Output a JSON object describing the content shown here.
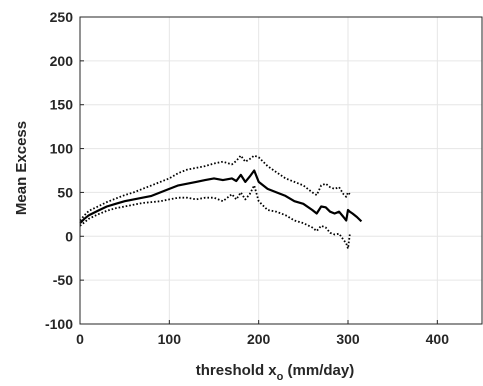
{
  "chart_data": {
    "type": "line",
    "title": "",
    "xlabel_main": "threshold x",
    "xlabel_sub": "o",
    "xlabel_unit": " (mm/day)",
    "ylabel": "Mean Excess",
    "xlim": [
      0,
      450
    ],
    "ylim": [
      -100,
      250
    ],
    "xticks": [
      0,
      100,
      200,
      300,
      400
    ],
    "yticks": [
      -100,
      -50,
      0,
      50,
      100,
      150,
      200,
      250
    ],
    "xtick_labels": [
      "0",
      "100",
      "200",
      "300",
      "400"
    ],
    "ytick_labels": [
      "-100",
      "-50",
      "0",
      "50",
      "100",
      "150",
      "200",
      "250"
    ],
    "grid": true,
    "colors": {
      "line": "#000000",
      "grid": "#e6e6e6",
      "axes": "#262626"
    },
    "series": [
      {
        "style": "solid",
        "x": [
          0,
          5,
          10,
          20,
          30,
          40,
          50,
          60,
          70,
          80,
          90,
          100,
          110,
          120,
          130,
          140,
          150,
          160,
          170,
          175,
          180,
          185,
          190,
          195,
          200,
          210,
          220,
          230,
          240,
          250,
          260,
          265,
          270,
          275,
          280,
          285,
          290,
          295,
          298,
          300,
          302,
          305,
          310,
          315
        ],
        "y": [
          15,
          20,
          24,
          29,
          34,
          37,
          40,
          42,
          44,
          46,
          50,
          54,
          58,
          60,
          62,
          64,
          66,
          64,
          66,
          63,
          70,
          62,
          68,
          75,
          62,
          54,
          50,
          46,
          40,
          37,
          30,
          26,
          34,
          33,
          28,
          26,
          28,
          22,
          18,
          30,
          28,
          26,
          22,
          17
        ]
      },
      {
        "style": "dotted",
        "x": [
          0,
          5,
          10,
          20,
          30,
          40,
          50,
          60,
          70,
          80,
          90,
          100,
          110,
          120,
          130,
          140,
          150,
          160,
          170,
          175,
          180,
          185,
          190,
          195,
          200,
          210,
          220,
          230,
          240,
          250,
          260,
          265,
          270,
          275,
          280,
          285,
          290,
          295,
          298,
          300,
          302
        ],
        "y": [
          18,
          24,
          29,
          34,
          39,
          43,
          47,
          50,
          54,
          58,
          62,
          66,
          72,
          76,
          78,
          80,
          83,
          85,
          82,
          86,
          92,
          85,
          88,
          92,
          90,
          80,
          73,
          66,
          62,
          58,
          50,
          47,
          58,
          60,
          56,
          54,
          56,
          48,
          45,
          50,
          48
        ]
      },
      {
        "style": "dotted",
        "x": [
          0,
          5,
          10,
          20,
          30,
          40,
          50,
          60,
          70,
          80,
          90,
          100,
          110,
          120,
          130,
          140,
          150,
          160,
          170,
          175,
          180,
          185,
          190,
          195,
          200,
          210,
          220,
          230,
          240,
          250,
          260,
          265,
          270,
          275,
          280,
          285,
          290,
          295,
          298,
          300,
          302
        ],
        "y": [
          12,
          16,
          20,
          25,
          29,
          32,
          34,
          36,
          38,
          39,
          40,
          42,
          44,
          44,
          42,
          44,
          44,
          40,
          48,
          42,
          50,
          42,
          48,
          58,
          40,
          30,
          28,
          24,
          18,
          15,
          10,
          6,
          12,
          10,
          4,
          2,
          3,
          -4,
          -8,
          -14,
          2
        ]
      }
    ]
  }
}
